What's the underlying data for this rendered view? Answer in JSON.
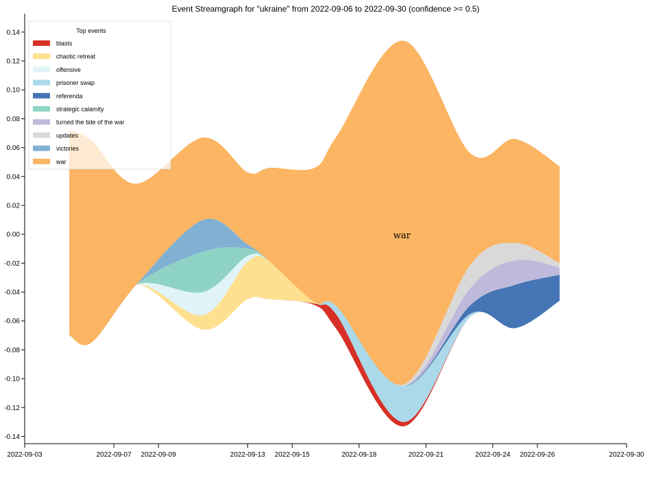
{
  "chart_data": {
    "type": "streamgraph",
    "title": "Event Streamgraph for \"ukraine\" from 2022-09-06 to 2022-09-30 (confidence >= 0.5)",
    "legend_title": "Top events",
    "legend_position": "top-left",
    "x_domain": [
      "2022-09-03",
      "2022-09-30"
    ],
    "ylim": [
      -0.145,
      0.148
    ],
    "x_ticks": [
      "2022-09-03",
      "2022-09-07",
      "2022-09-09",
      "2022-09-13",
      "2022-09-15",
      "2022-09-18",
      "2022-09-21",
      "2022-09-24",
      "2022-09-26",
      "2022-09-30"
    ],
    "y_ticks": [
      0.14,
      0.12,
      0.1,
      0.08,
      0.06,
      0.04,
      0.02,
      0.0,
      -0.02,
      -0.04,
      -0.06,
      -0.08,
      -0.1,
      -0.12,
      -0.14
    ],
    "y_tick_labels": [
      "0.14",
      "0.12",
      "0.10",
      "0.08",
      "0.06",
      "0.04",
      "0.02",
      "0.00",
      "-0.02",
      "-0.04",
      "-0.06",
      "-0.08",
      "-0.10",
      "-0.12",
      "-0.14"
    ],
    "x": [
      "2022-09-05",
      "2022-09-06",
      "2022-09-08",
      "2022-09-11",
      "2022-09-13",
      "2022-09-14",
      "2022-09-16",
      "2022-09-17",
      "2022-09-20",
      "2022-09-23",
      "2022-09-25",
      "2022-09-27"
    ],
    "baseline": [
      -0.07,
      -0.075,
      -0.035,
      -0.066,
      -0.045,
      -0.045,
      -0.049,
      -0.066,
      -0.133,
      -0.057,
      -0.065,
      -0.046
    ],
    "series": [
      {
        "name": "blasts",
        "color": "#d73027",
        "values": [
          0,
          0,
          0,
          0,
          0,
          0,
          0.001,
          0.01,
          0.003,
          0,
          0,
          0
        ]
      },
      {
        "name": "chaotic retreat",
        "color": "#fee090",
        "values": [
          0,
          0,
          0,
          0.01,
          0.026,
          0.026,
          0.001,
          0,
          0,
          0,
          0,
          0
        ]
      },
      {
        "name": "offensive",
        "color": "#e0f3f8",
        "values": [
          0,
          0,
          0,
          0.016,
          0.004,
          0,
          0,
          0,
          0,
          0,
          0,
          0
        ]
      },
      {
        "name": "prisoner swap",
        "color": "#abd9e9",
        "values": [
          0,
          0,
          0,
          0,
          0,
          0,
          0,
          0.006,
          0.025,
          0.002,
          0,
          0
        ]
      },
      {
        "name": "referenda",
        "color": "#4575b4",
        "values": [
          0,
          0,
          0,
          0,
          0,
          0,
          0,
          0,
          0,
          0.006,
          0.03,
          0.018
        ]
      },
      {
        "name": "strategic calamity",
        "color": "#8fd3c5",
        "values": [
          0,
          0,
          0,
          0.028,
          0.005,
          0,
          0,
          0,
          0,
          0,
          0,
          0
        ]
      },
      {
        "name": "turned the tide of the war",
        "color": "#bfbadb",
        "values": [
          0,
          0,
          0,
          0,
          0,
          0,
          0,
          0,
          0,
          0.012,
          0.017,
          0.005
        ]
      },
      {
        "name": "updates",
        "color": "#d9d9d9",
        "values": [
          0,
          0,
          0,
          0,
          0,
          0,
          0,
          0,
          0.001,
          0.016,
          0.012,
          0.003
        ]
      },
      {
        "name": "victories",
        "color": "#80b1d3",
        "values": [
          0,
          0,
          0,
          0.022,
          0.003,
          0,
          0,
          0,
          0,
          0,
          0,
          0
        ]
      },
      {
        "name": "war",
        "color": "#fbb563",
        "values": [
          0.142,
          0.14,
          0.07,
          0.057,
          0.05,
          0.065,
          0.093,
          0.118,
          0.238,
          0.077,
          0.072,
          0.067
        ]
      }
    ],
    "annotations": [
      {
        "text": "war",
        "x": "2022-09-19",
        "y": 0.0
      }
    ]
  }
}
